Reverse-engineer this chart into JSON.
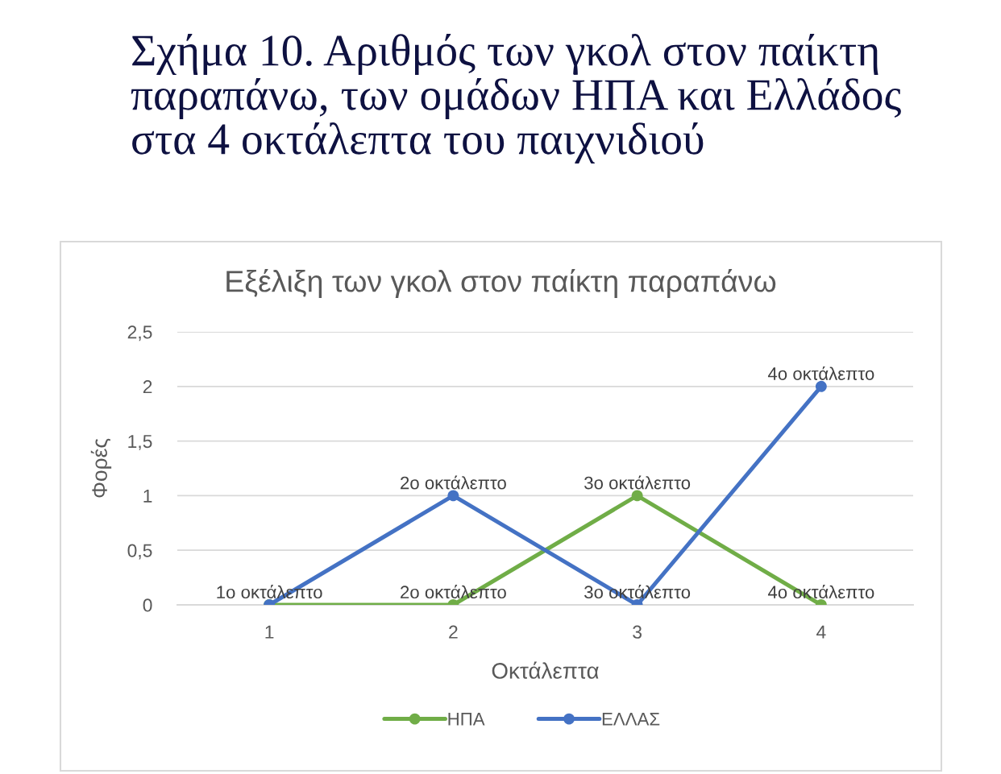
{
  "chart_data": {
    "type": "line",
    "title": "Σχήμα 10. Αριθμός των γκολ στον παίκτη\nπαραπάνω, των ομάδων ΗΠΑ και Ελλάδος\nστα 4 οκτάλεπτα του παιχνιδιού",
    "subtitle": "Εξέλιξη των γκολ στον παίκτη παραπάνω",
    "xlabel": "Οκτάλεπτα",
    "ylabel": "Φορές",
    "categories": [
      "1",
      "2",
      "3",
      "4"
    ],
    "series": [
      {
        "name": "ΗΠΑ",
        "color": "#70ad47",
        "values": [
          0,
          0,
          1,
          0
        ]
      },
      {
        "name": "ΕΛΛΑΣ",
        "color": "#4472c4",
        "values": [
          0,
          1,
          0,
          2
        ]
      }
    ],
    "annotations": [
      {
        "text": "1ο οκτάλεπτο",
        "x": "1",
        "y": 0
      },
      {
        "text": "2ο οκτάλεπτο",
        "x": "2",
        "y": 1
      },
      {
        "text": "2ο οκτάλεπτο",
        "x": "2",
        "y": 0
      },
      {
        "text": "3ο οκτάλεπτο",
        "x": "3",
        "y": 1
      },
      {
        "text": "3ο οκτάλεπτο",
        "x": "3",
        "y": 0
      },
      {
        "text": "4ο οκτάλεπτο",
        "x": "4",
        "y": 2
      },
      {
        "text": "4ο οκτάλεπτο",
        "x": "4",
        "y": 0
      }
    ],
    "ylim": [
      0,
      2.5
    ],
    "yticks": [
      0,
      {
        "value": 0.5,
        "label": "0,5"
      },
      1,
      {
        "value": 1.5,
        "label": "1,5"
      },
      2,
      {
        "value": 2.5,
        "label": "2,5"
      }
    ],
    "grid": "y",
    "legend": "bottom",
    "marker": "circle",
    "line_style": "solid"
  }
}
